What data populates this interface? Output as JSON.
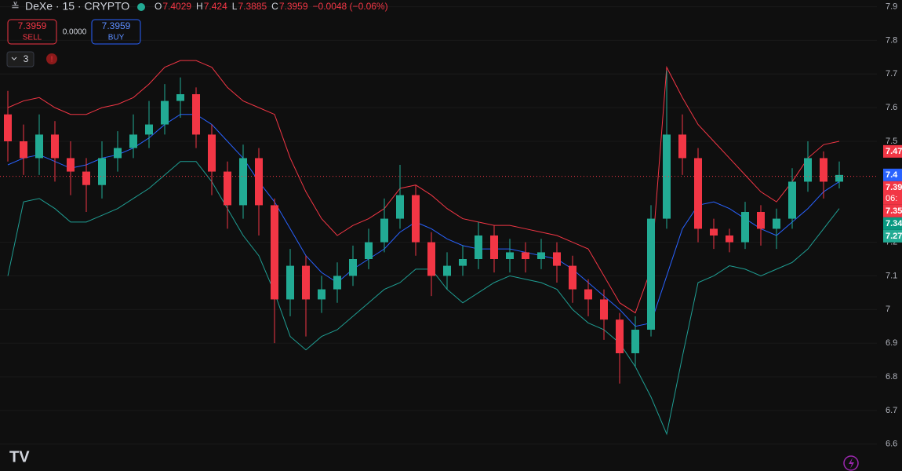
{
  "chart_data": {
    "type": "candlestick",
    "title": "DeXe · 15 · CRYPTO",
    "ylim": [
      6.52,
      7.92
    ],
    "yticks": [
      6.6,
      6.7,
      6.8,
      6.9,
      7.0,
      7.1,
      7.2,
      7.5,
      7.6,
      7.7,
      7.8,
      7.9
    ],
    "up_color": "#22ab94",
    "down_color": "#f23645",
    "open": [
      7.58,
      7.5,
      7.45,
      7.52,
      7.45,
      7.41,
      7.37,
      7.45,
      7.48,
      7.52,
      7.55,
      7.62,
      7.64,
      7.52,
      7.41,
      7.31,
      7.45,
      7.31,
      7.03,
      7.13,
      7.03,
      7.06,
      7.1,
      7.15,
      7.2,
      7.27,
      7.34,
      7.2,
      7.1,
      7.13,
      7.15,
      7.22,
      7.15,
      7.17,
      7.15,
      7.17,
      7.13,
      7.06,
      7.03,
      6.97,
      6.87,
      6.94,
      7.27,
      7.52,
      7.45,
      7.24,
      7.22,
      7.2,
      7.29,
      7.24,
      7.27,
      7.38,
      7.45,
      7.38
    ],
    "high": [
      7.65,
      7.55,
      7.58,
      7.56,
      7.5,
      7.45,
      7.5,
      7.53,
      7.58,
      7.62,
      7.67,
      7.69,
      7.66,
      7.55,
      7.44,
      7.49,
      7.48,
      7.33,
      7.18,
      7.16,
      7.1,
      7.14,
      7.19,
      7.24,
      7.33,
      7.43,
      7.37,
      7.23,
      7.17,
      7.19,
      7.26,
      7.25,
      7.21,
      7.2,
      7.21,
      7.2,
      7.16,
      7.09,
      7.06,
      6.99,
      6.98,
      7.31,
      7.71,
      7.58,
      7.48,
      7.27,
      7.24,
      7.32,
      7.31,
      7.3,
      7.42,
      7.5,
      7.47,
      7.44
    ],
    "low": [
      7.44,
      7.4,
      7.4,
      7.38,
      7.34,
      7.29,
      7.33,
      7.41,
      7.45,
      7.48,
      7.52,
      7.57,
      7.48,
      7.34,
      7.24,
      7.27,
      7.22,
      6.9,
      6.98,
      6.92,
      6.99,
      7.02,
      7.07,
      7.12,
      7.17,
      7.24,
      7.16,
      7.04,
      7.06,
      7.1,
      7.12,
      7.11,
      7.11,
      7.11,
      7.12,
      7.08,
      7.02,
      6.98,
      6.91,
      6.78,
      6.83,
      6.92,
      7.24,
      7.4,
      7.2,
      7.18,
      7.17,
      7.18,
      7.19,
      7.18,
      7.24,
      7.35,
      7.33,
      7.36
    ],
    "close": [
      7.5,
      7.45,
      7.52,
      7.45,
      7.41,
      7.37,
      7.45,
      7.48,
      7.52,
      7.55,
      7.62,
      7.64,
      7.52,
      7.41,
      7.31,
      7.45,
      7.31,
      7.03,
      7.13,
      7.03,
      7.06,
      7.1,
      7.15,
      7.2,
      7.27,
      7.34,
      7.2,
      7.1,
      7.13,
      7.15,
      7.22,
      7.15,
      7.17,
      7.15,
      7.17,
      7.13,
      7.06,
      7.03,
      6.97,
      6.87,
      6.94,
      7.27,
      7.52,
      7.45,
      7.24,
      7.22,
      7.2,
      7.29,
      7.24,
      7.27,
      7.38,
      7.45,
      7.38,
      7.4
    ],
    "lines": [
      {
        "color": "#f23645",
        "values": [
          7.6,
          7.62,
          7.63,
          7.6,
          7.58,
          7.58,
          7.6,
          7.61,
          7.63,
          7.67,
          7.72,
          7.74,
          7.74,
          7.72,
          7.66,
          7.62,
          7.6,
          7.58,
          7.45,
          7.35,
          7.27,
          7.22,
          7.25,
          7.27,
          7.3,
          7.36,
          7.37,
          7.34,
          7.3,
          7.27,
          7.26,
          7.25,
          7.25,
          7.24,
          7.23,
          7.22,
          7.2,
          7.18,
          7.1,
          7.02,
          6.99,
          7.12,
          7.72,
          7.63,
          7.55,
          7.5,
          7.45,
          7.4,
          7.35,
          7.32,
          7.38,
          7.45,
          7.49,
          7.5
        ]
      },
      {
        "color": "#2962ff",
        "values": [
          7.43,
          7.45,
          7.46,
          7.44,
          7.42,
          7.43,
          7.45,
          7.46,
          7.48,
          7.51,
          7.55,
          7.58,
          7.58,
          7.55,
          7.5,
          7.45,
          7.38,
          7.32,
          7.24,
          7.16,
          7.11,
          7.08,
          7.12,
          7.15,
          7.18,
          7.23,
          7.26,
          7.24,
          7.21,
          7.19,
          7.18,
          7.18,
          7.18,
          7.17,
          7.16,
          7.15,
          7.12,
          7.08,
          7.04,
          7.0,
          6.95,
          6.96,
          7.1,
          7.24,
          7.31,
          7.32,
          7.3,
          7.27,
          7.24,
          7.22,
          7.26,
          7.3,
          7.35,
          7.38
        ]
      },
      {
        "color": "#1f9e93",
        "values": [
          7.1,
          7.32,
          7.33,
          7.3,
          7.26,
          7.26,
          7.28,
          7.3,
          7.33,
          7.36,
          7.4,
          7.44,
          7.44,
          7.38,
          7.3,
          7.22,
          7.16,
          7.05,
          6.92,
          6.88,
          6.92,
          6.94,
          6.98,
          7.02,
          7.06,
          7.08,
          7.12,
          7.12,
          7.06,
          7.02,
          7.05,
          7.08,
          7.1,
          7.09,
          7.08,
          7.06,
          7.0,
          6.96,
          6.94,
          6.9,
          6.83,
          6.74,
          6.63,
          6.86,
          7.08,
          7.1,
          7.13,
          7.12,
          7.1,
          7.12,
          7.14,
          7.18,
          7.24,
          7.3
        ]
      }
    ],
    "price_tags": [
      {
        "value": 7.47,
        "color": "#f23645"
      },
      {
        "value": 7.4,
        "color": "#2962ff"
      },
      {
        "value": 7.39,
        "color": "#f23645",
        "countdown": "06:"
      },
      {
        "value": 7.35,
        "color": "#f23645"
      },
      {
        "value": 7.34,
        "color": "#089981"
      },
      {
        "value": 7.27,
        "color": "#22ab94"
      }
    ]
  },
  "header": {
    "items": [
      {
        "label": "O",
        "value": 7.4029
      },
      {
        "label": "H",
        "value": 7.424
      },
      {
        "label": "L",
        "value": 7.3885
      },
      {
        "label": "C",
        "value": 7.3959
      }
    ],
    "change": "−0.0048 (−0.06%)",
    "sell": {
      "price": "7.3959",
      "label": "SELL"
    },
    "spread": "0.0000",
    "buy": {
      "price": "7.3959",
      "label": "BUY"
    },
    "indicators": "3"
  }
}
